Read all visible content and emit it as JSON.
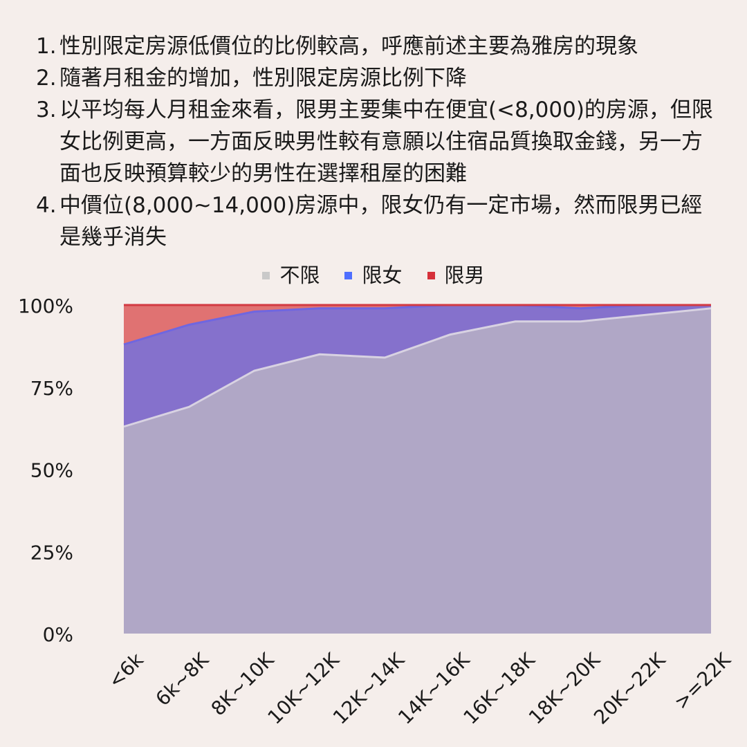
{
  "notes": [
    {
      "num": "1.",
      "text": "性別限定房源低價位的比例較高，呼應前述主要為雅房的現象"
    },
    {
      "num": "2.",
      "text": "隨著月租金的增加，性別限定房源比例下降"
    },
    {
      "num": "3.",
      "text": "以平均每人月租金來看，限男主要集中在便宜(<8,000)的房源，但限女比例更高，一方面反映男性較有意願以住宿品質換取金錢，另一方面也反映預算較少的男性在選擇租屋的困難"
    },
    {
      "num": "4.",
      "text": "中價位(8,000~14,000)房源中，限女仍有一定市場，然而限男已經是幾乎消失"
    }
  ],
  "chart_data": {
    "type": "area",
    "stacked": true,
    "categories": [
      "<6k",
      "6k~8K",
      "8K~10K",
      "10K~12K",
      "12K~14K",
      "14K~16K",
      "16K~18K",
      "18K~20K",
      "20K~22K",
      ">=22K"
    ],
    "series": [
      {
        "name": "不限",
        "values": [
          63,
          69,
          80,
          85,
          84,
          91,
          95,
          95,
          97,
          99
        ],
        "color": "#b0a7c6"
      },
      {
        "name": "限女",
        "values": [
          25,
          25,
          18,
          14,
          15,
          9,
          5,
          4,
          3,
          1
        ],
        "color": "#8571cc"
      },
      {
        "name": "限男",
        "values": [
          12,
          6,
          2,
          1,
          1,
          0,
          0,
          1,
          0,
          0
        ],
        "color": "#e07272"
      }
    ],
    "legend_colors": [
      "#c9c9c9",
      "#4f6fff",
      "#d6303a"
    ],
    "y_ticks": [
      "0%",
      "25%",
      "50%",
      "75%",
      "100%"
    ],
    "ylim": [
      0,
      100
    ],
    "legend_position": "top-center",
    "grid": false
  }
}
